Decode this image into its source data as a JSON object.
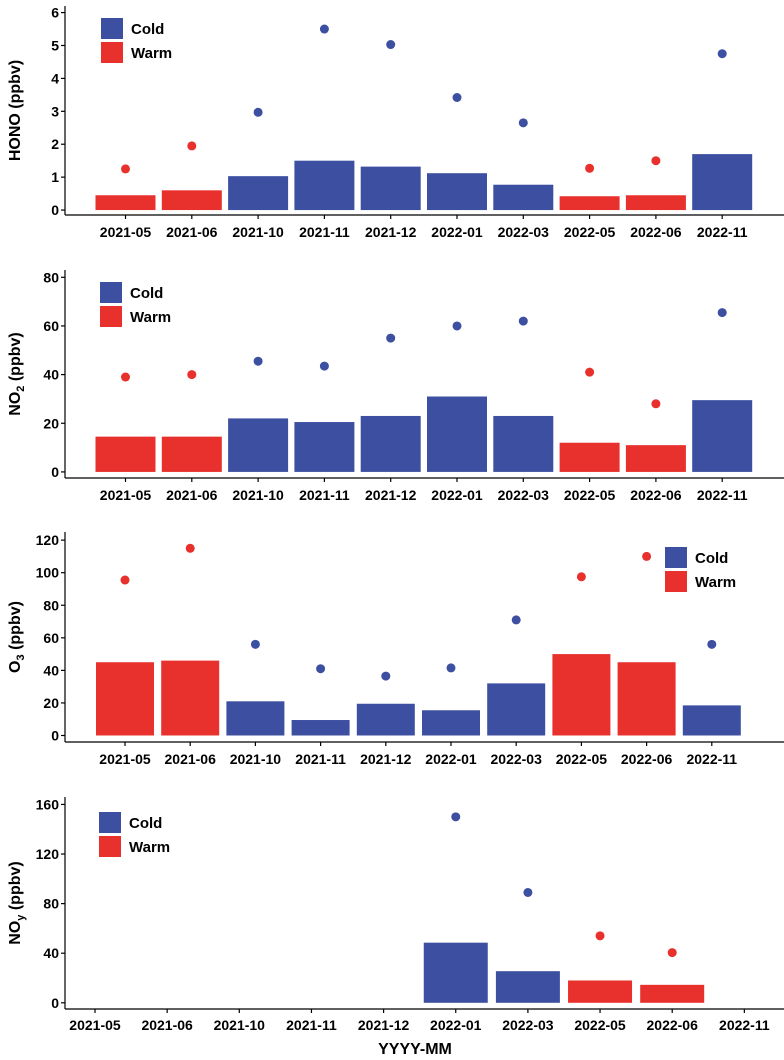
{
  "colors": {
    "cold": "#3d4fa0",
    "warm": "#e8302c"
  },
  "figure": {
    "shared_xlabel": "YYYY-MM"
  },
  "chart_data": [
    {
      "type": "bar",
      "panel": "HONO",
      "ylabel_main": "HONO (ppbv)",
      "ylabel_sub": "",
      "ylabel_tail": "",
      "categories": [
        "2021-05",
        "2021-06",
        "2021-10",
        "2021-11",
        "2021-12",
        "2022-01",
        "2022-03",
        "2022-05",
        "2022-06",
        "2022-11"
      ],
      "season": [
        "Warm",
        "Warm",
        "Cold",
        "Cold",
        "Cold",
        "Cold",
        "Cold",
        "Warm",
        "Warm",
        "Cold"
      ],
      "series": [
        {
          "name": "bar",
          "values": [
            0.45,
            0.6,
            1.03,
            1.5,
            1.32,
            1.12,
            0.77,
            0.42,
            0.45,
            1.7
          ]
        },
        {
          "name": "point",
          "values": [
            1.25,
            1.95,
            2.97,
            5.5,
            5.03,
            3.42,
            2.65,
            1.27,
            1.5,
            4.75
          ]
        }
      ],
      "yticks": [
        0,
        1,
        2,
        3,
        4,
        5,
        6
      ],
      "ylim": [
        -0.15,
        6.2
      ],
      "legend": {
        "position": "top-left",
        "entries": [
          "Cold",
          "Warm"
        ]
      }
    },
    {
      "type": "bar",
      "panel": "NO2",
      "ylabel_main": "NO",
      "ylabel_sub": "2",
      "ylabel_tail": " (ppbv)",
      "categories": [
        "2021-05",
        "2021-06",
        "2021-10",
        "2021-11",
        "2021-12",
        "2022-01",
        "2022-03",
        "2022-05",
        "2022-06",
        "2022-11"
      ],
      "season": [
        "Warm",
        "Warm",
        "Cold",
        "Cold",
        "Cold",
        "Cold",
        "Cold",
        "Warm",
        "Warm",
        "Cold"
      ],
      "series": [
        {
          "name": "bar",
          "values": [
            14.5,
            14.5,
            22,
            20.5,
            23,
            31,
            23,
            12,
            11,
            29.5
          ]
        },
        {
          "name": "point",
          "values": [
            39,
            40,
            45.5,
            43.5,
            55,
            60,
            62,
            41,
            28,
            65.5
          ]
        }
      ],
      "yticks": [
        0,
        20,
        40,
        60,
        80
      ],
      "ylim": [
        -2.5,
        83
      ],
      "legend": {
        "position": "top-left",
        "entries": [
          "Cold",
          "Warm"
        ]
      }
    },
    {
      "type": "bar",
      "panel": "O3",
      "ylabel_main": "O",
      "ylabel_sub": "3",
      "ylabel_tail": " (ppbv)",
      "categories": [
        "2021-05",
        "2021-06",
        "2021-10",
        "2021-11",
        "2021-12",
        "2022-01",
        "2022-03",
        "2022-05",
        "2022-06",
        "2022-11"
      ],
      "season": [
        "Warm",
        "Warm",
        "Cold",
        "Cold",
        "Cold",
        "Cold",
        "Cold",
        "Warm",
        "Warm",
        "Cold"
      ],
      "series": [
        {
          "name": "bar",
          "values": [
            45,
            46,
            21,
            9.5,
            19.5,
            15.5,
            32,
            50,
            45,
            18.5
          ]
        },
        {
          "name": "point",
          "values": [
            95.5,
            115,
            56,
            41,
            36.5,
            41.5,
            71,
            97.5,
            110,
            56
          ]
        }
      ],
      "yticks": [
        0,
        20,
        40,
        60,
        80,
        100,
        120
      ],
      "ylim": [
        -4,
        125
      ],
      "legend": {
        "position": "top-right",
        "entries": [
          "Cold",
          "Warm"
        ]
      }
    },
    {
      "type": "bar",
      "panel": "NOy",
      "ylabel_main": "NO",
      "ylabel_sub": "y",
      "ylabel_tail": " (ppbv)",
      "categories": [
        "2021-05",
        "2021-06",
        "2021-10",
        "2021-11",
        "2021-12",
        "2022-01",
        "2022-03",
        "2022-05",
        "2022-06",
        "2022-11"
      ],
      "season": [
        "Warm",
        "Warm",
        "Cold",
        "Cold",
        "Cold",
        "Cold",
        "Cold",
        "Warm",
        "Warm",
        "Cold"
      ],
      "series": [
        {
          "name": "bar",
          "values": [
            null,
            null,
            null,
            null,
            null,
            48.5,
            25.5,
            18,
            14.5,
            null
          ]
        },
        {
          "name": "point",
          "values": [
            null,
            null,
            null,
            null,
            null,
            150,
            89,
            54,
            40.5,
            null
          ]
        }
      ],
      "yticks": [
        0,
        40,
        80,
        120,
        160
      ],
      "ylim": [
        -5,
        166
      ],
      "xlabel": "YYYY-MM",
      "legend": {
        "position": "top-left",
        "entries": [
          "Cold",
          "Warm"
        ]
      }
    }
  ]
}
